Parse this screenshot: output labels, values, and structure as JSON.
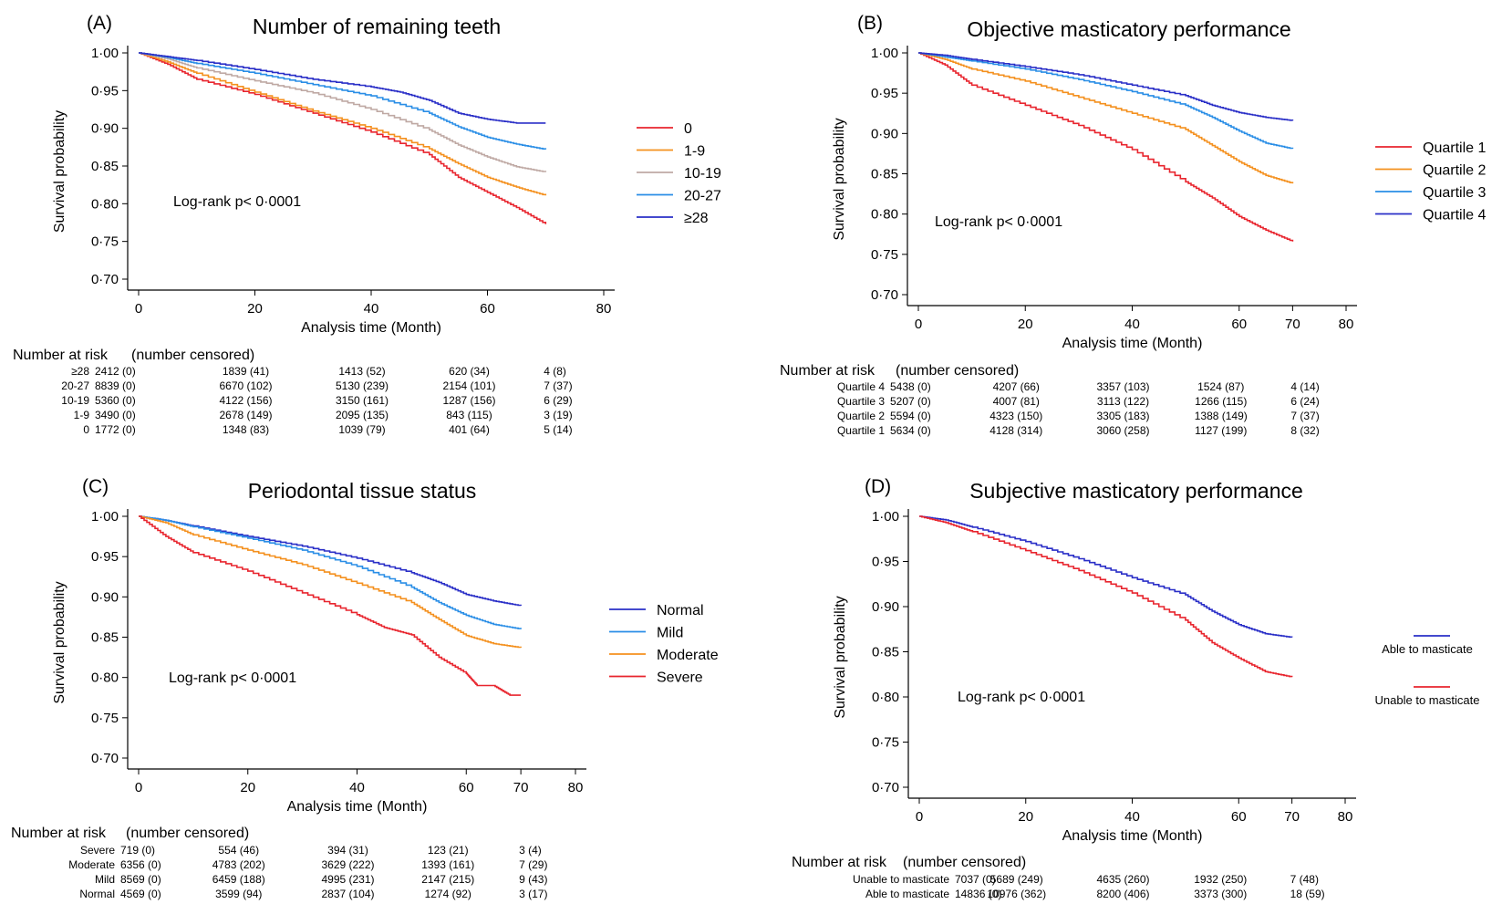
{
  "chart_data": [
    {
      "type": "line",
      "panel": "(A)",
      "title": "Number of remaining teeth",
      "xlabel": "Analysis time (Month)",
      "ylabel": "Survival probability",
      "xlim": [
        0,
        80
      ],
      "ylim": [
        0.7,
        1.0
      ],
      "xticks": [
        "0",
        "20",
        "40",
        "60",
        "80"
      ],
      "yticks": [
        "0·70",
        "0·75",
        "0·80",
        "0·85",
        "0·90",
        "0·95",
        "1·00"
      ],
      "annotation": "Log-rank p< 0·0001",
      "legend_position": "right",
      "series": [
        {
          "name": "0",
          "color": "#e8252e",
          "x": [
            0,
            5,
            10,
            20,
            30,
            40,
            50,
            55,
            60,
            65,
            70
          ],
          "y": [
            1.0,
            0.985,
            0.965,
            0.945,
            0.92,
            0.895,
            0.865,
            0.835,
            0.815,
            0.795,
            0.773
          ]
        },
        {
          "name": "1-9",
          "color": "#f4901e",
          "x": [
            0,
            5,
            10,
            20,
            30,
            40,
            50,
            55,
            60,
            65,
            70
          ],
          "y": [
            1.0,
            0.988,
            0.973,
            0.948,
            0.923,
            0.9,
            0.873,
            0.853,
            0.835,
            0.822,
            0.811
          ]
        },
        {
          "name": "10-19",
          "color": "#bfa9a4",
          "x": [
            0,
            5,
            10,
            20,
            30,
            40,
            50,
            55,
            60,
            65,
            70
          ],
          "y": [
            1.0,
            0.992,
            0.98,
            0.963,
            0.947,
            0.925,
            0.898,
            0.878,
            0.862,
            0.849,
            0.842
          ]
        },
        {
          "name": "20-27",
          "color": "#2a8ee6",
          "x": [
            0,
            5,
            10,
            20,
            30,
            40,
            50,
            55,
            60,
            65,
            70
          ],
          "y": [
            1.0,
            0.994,
            0.986,
            0.973,
            0.958,
            0.943,
            0.92,
            0.902,
            0.888,
            0.879,
            0.872
          ]
        },
        {
          "name": "≥28",
          "color": "#2a2fc7",
          "x": [
            0,
            5,
            10,
            20,
            30,
            40,
            45,
            50,
            55,
            60,
            65,
            70
          ],
          "y": [
            1.0,
            0.995,
            0.99,
            0.978,
            0.965,
            0.955,
            0.948,
            0.937,
            0.92,
            0.912,
            0.907,
            0.907
          ]
        }
      ],
      "risk_table": {
        "header": "Number at risk",
        "subheader": "(number censored)",
        "rows": [
          {
            "label": "≥28",
            "values": [
              "2412 (0)",
              "1839 (41)",
              "1413 (52)",
              "620 (34)",
              "4 (8)"
            ]
          },
          {
            "label": "20-27",
            "values": [
              "8839 (0)",
              "6670 (102)",
              "5130 (239)",
              "2154 (101)",
              "7 (37)"
            ]
          },
          {
            "label": "10-19",
            "values": [
              "5360 (0)",
              "4122 (156)",
              "3150 (161)",
              "1287 (156)",
              "6 (29)"
            ]
          },
          {
            "label": "1-9",
            "values": [
              "3490 (0)",
              "2678 (149)",
              "2095 (135)",
              "843 (115)",
              "3 (19)"
            ]
          },
          {
            "label": "0",
            "values": [
              "1772 (0)",
              "1348 (83)",
              "1039 (79)",
              "401 (64)",
              "5 (14)"
            ]
          }
        ]
      }
    },
    {
      "type": "line",
      "panel": "(B)",
      "title": "Objective masticatory performance",
      "xlabel": "Analysis time (Month)",
      "ylabel": "Survival probability",
      "xlim": [
        0,
        80
      ],
      "ylim": [
        0.7,
        1.0
      ],
      "xticks": [
        "0",
        "20",
        "40",
        "60",
        "70",
        "80"
      ],
      "yticks": [
        "0·70",
        "0·75",
        "0·80",
        "0·85",
        "0·90",
        "0·95",
        "1·00"
      ],
      "annotation": "Log-rank p< 0·0001",
      "legend_position": "right",
      "series": [
        {
          "name": "Quartile 1",
          "color": "#e8252e",
          "x": [
            0,
            5,
            10,
            20,
            30,
            40,
            50,
            55,
            60,
            65,
            70
          ],
          "y": [
            1.0,
            0.985,
            0.96,
            0.935,
            0.91,
            0.88,
            0.84,
            0.82,
            0.797,
            0.78,
            0.766
          ]
        },
        {
          "name": "Quartile 2",
          "color": "#f4901e",
          "x": [
            0,
            5,
            10,
            20,
            30,
            40,
            50,
            55,
            60,
            65,
            70
          ],
          "y": [
            1.0,
            0.992,
            0.98,
            0.965,
            0.945,
            0.925,
            0.905,
            0.885,
            0.865,
            0.848,
            0.838
          ]
        },
        {
          "name": "Quartile 3",
          "color": "#2a8ee6",
          "x": [
            0,
            5,
            10,
            20,
            30,
            40,
            50,
            55,
            60,
            65,
            70
          ],
          "y": [
            1.0,
            0.995,
            0.99,
            0.98,
            0.967,
            0.952,
            0.935,
            0.92,
            0.903,
            0.888,
            0.881
          ]
        },
        {
          "name": "Quartile 4",
          "color": "#2a2fc7",
          "x": [
            0,
            5,
            10,
            20,
            30,
            40,
            50,
            55,
            60,
            65,
            70
          ],
          "y": [
            1.0,
            0.997,
            0.992,
            0.983,
            0.973,
            0.96,
            0.947,
            0.935,
            0.926,
            0.92,
            0.916
          ]
        }
      ],
      "risk_table": {
        "header": "Number at risk",
        "subheader": "(number censored)",
        "rows": [
          {
            "label": "Quartile 4",
            "values": [
              "5438 (0)",
              "4207 (66)",
              "3357 (103)",
              "1524 (87)",
              "4 (14)"
            ]
          },
          {
            "label": "Quartile 3",
            "values": [
              "5207 (0)",
              "4007 (81)",
              "3113 (122)",
              "1266 (115)",
              "6 (24)"
            ]
          },
          {
            "label": "Quartile 2",
            "values": [
              "5594 (0)",
              "4323 (150)",
              "3305 (183)",
              "1388 (149)",
              "7 (37)"
            ]
          },
          {
            "label": "Quartile 1",
            "values": [
              "5634 (0)",
              "4128 (314)",
              "3060 (258)",
              "1127 (199)",
              "8 (32)"
            ]
          }
        ]
      }
    },
    {
      "type": "line",
      "panel": "(C)",
      "title": "Periodontal tissue status",
      "xlabel": "Analysis time (Month)",
      "ylabel": "Survival probability",
      "xlim": [
        0,
        80
      ],
      "ylim": [
        0.7,
        1.0
      ],
      "xticks": [
        "0",
        "20",
        "40",
        "60",
        "70",
        "80"
      ],
      "yticks": [
        "0·70",
        "0·75",
        "0·80",
        "0·85",
        "0·90",
        "0·95",
        "1·00"
      ],
      "annotation": "Log-rank p< 0·0001",
      "legend_position": "right",
      "series": [
        {
          "name": "Normal",
          "color": "#2a2fc7",
          "x": [
            0,
            5,
            10,
            20,
            30,
            40,
            50,
            55,
            60,
            65,
            70
          ],
          "y": [
            1.0,
            0.995,
            0.988,
            0.975,
            0.963,
            0.948,
            0.93,
            0.918,
            0.903,
            0.895,
            0.889
          ]
        },
        {
          "name": "Mild",
          "color": "#2a8ee6",
          "x": [
            0,
            5,
            10,
            20,
            30,
            40,
            50,
            55,
            60,
            65,
            70
          ],
          "y": [
            1.0,
            0.995,
            0.987,
            0.973,
            0.958,
            0.938,
            0.912,
            0.893,
            0.877,
            0.866,
            0.86
          ]
        },
        {
          "name": "Moderate",
          "color": "#f4901e",
          "x": [
            0,
            5,
            10,
            20,
            30,
            40,
            50,
            55,
            60,
            65,
            70
          ],
          "y": [
            1.0,
            0.992,
            0.977,
            0.958,
            0.94,
            0.917,
            0.893,
            0.872,
            0.852,
            0.842,
            0.837
          ]
        },
        {
          "name": "Severe",
          "color": "#e8252e",
          "x": [
            0,
            5,
            10,
            20,
            30,
            40,
            45,
            50,
            55,
            60,
            62,
            65,
            68,
            70
          ],
          "y": [
            1.0,
            0.975,
            0.955,
            0.932,
            0.905,
            0.878,
            0.862,
            0.853,
            0.825,
            0.805,
            0.79,
            0.79,
            0.778,
            0.778
          ]
        }
      ],
      "risk_table": {
        "header": "Number at risk",
        "subheader": "(number censored)",
        "rows": [
          {
            "label": "Severe",
            "values": [
              "719 (0)",
              "554 (46)",
              "394 (31)",
              "123 (21)",
              "3 (4)"
            ]
          },
          {
            "label": "Moderate",
            "values": [
              "6356 (0)",
              "4783 (202)",
              "3629 (222)",
              "1393 (161)",
              "7 (29)"
            ]
          },
          {
            "label": "Mild",
            "values": [
              "8569 (0)",
              "6459 (188)",
              "4995 (231)",
              "2147 (215)",
              "9 (43)"
            ]
          },
          {
            "label": "Normal",
            "values": [
              "4569 (0)",
              "3599 (94)",
              "2837 (104)",
              "1274 (92)",
              "3 (17)"
            ]
          }
        ]
      }
    },
    {
      "type": "line",
      "panel": "(D)",
      "title": "Subjective masticatory performance",
      "xlabel": "Analysis time (Month)",
      "ylabel": "Survival probability",
      "xlim": [
        0,
        80
      ],
      "ylim": [
        0.7,
        1.0
      ],
      "xticks": [
        "0",
        "20",
        "40",
        "60",
        "70",
        "80"
      ],
      "yticks": [
        "0·70",
        "0·75",
        "0·80",
        "0·85",
        "0·90",
        "0·95",
        "1·00"
      ],
      "annotation": "Log-rank p< 0·0001",
      "legend_position": "right",
      "series": [
        {
          "name": "Able to masticate",
          "color": "#2a2fc7",
          "x": [
            0,
            5,
            10,
            20,
            30,
            40,
            50,
            55,
            60,
            65,
            70
          ],
          "y": [
            1.0,
            0.996,
            0.988,
            0.972,
            0.953,
            0.932,
            0.913,
            0.895,
            0.88,
            0.87,
            0.866
          ]
        },
        {
          "name": "Unable to masticate",
          "color": "#e8252e",
          "x": [
            0,
            5,
            10,
            20,
            30,
            40,
            50,
            55,
            60,
            65,
            70
          ],
          "y": [
            1.0,
            0.993,
            0.983,
            0.962,
            0.94,
            0.915,
            0.885,
            0.86,
            0.843,
            0.828,
            0.822
          ]
        }
      ],
      "risk_table": {
        "header": "Number at risk",
        "subheader": "(number censored)",
        "rows": [
          {
            "label": "Unable to masticate",
            "values": [
              "7037 (0)",
              "5689 (249)",
              "4635 (260)",
              "1932 (250)",
              "7 (48)"
            ]
          },
          {
            "label": "Able to masticate",
            "values": [
              "14836 (0)",
              "10976 (362)",
              "8200 (406)",
              "3373 (300)",
              "18 (59)"
            ]
          }
        ]
      }
    }
  ]
}
